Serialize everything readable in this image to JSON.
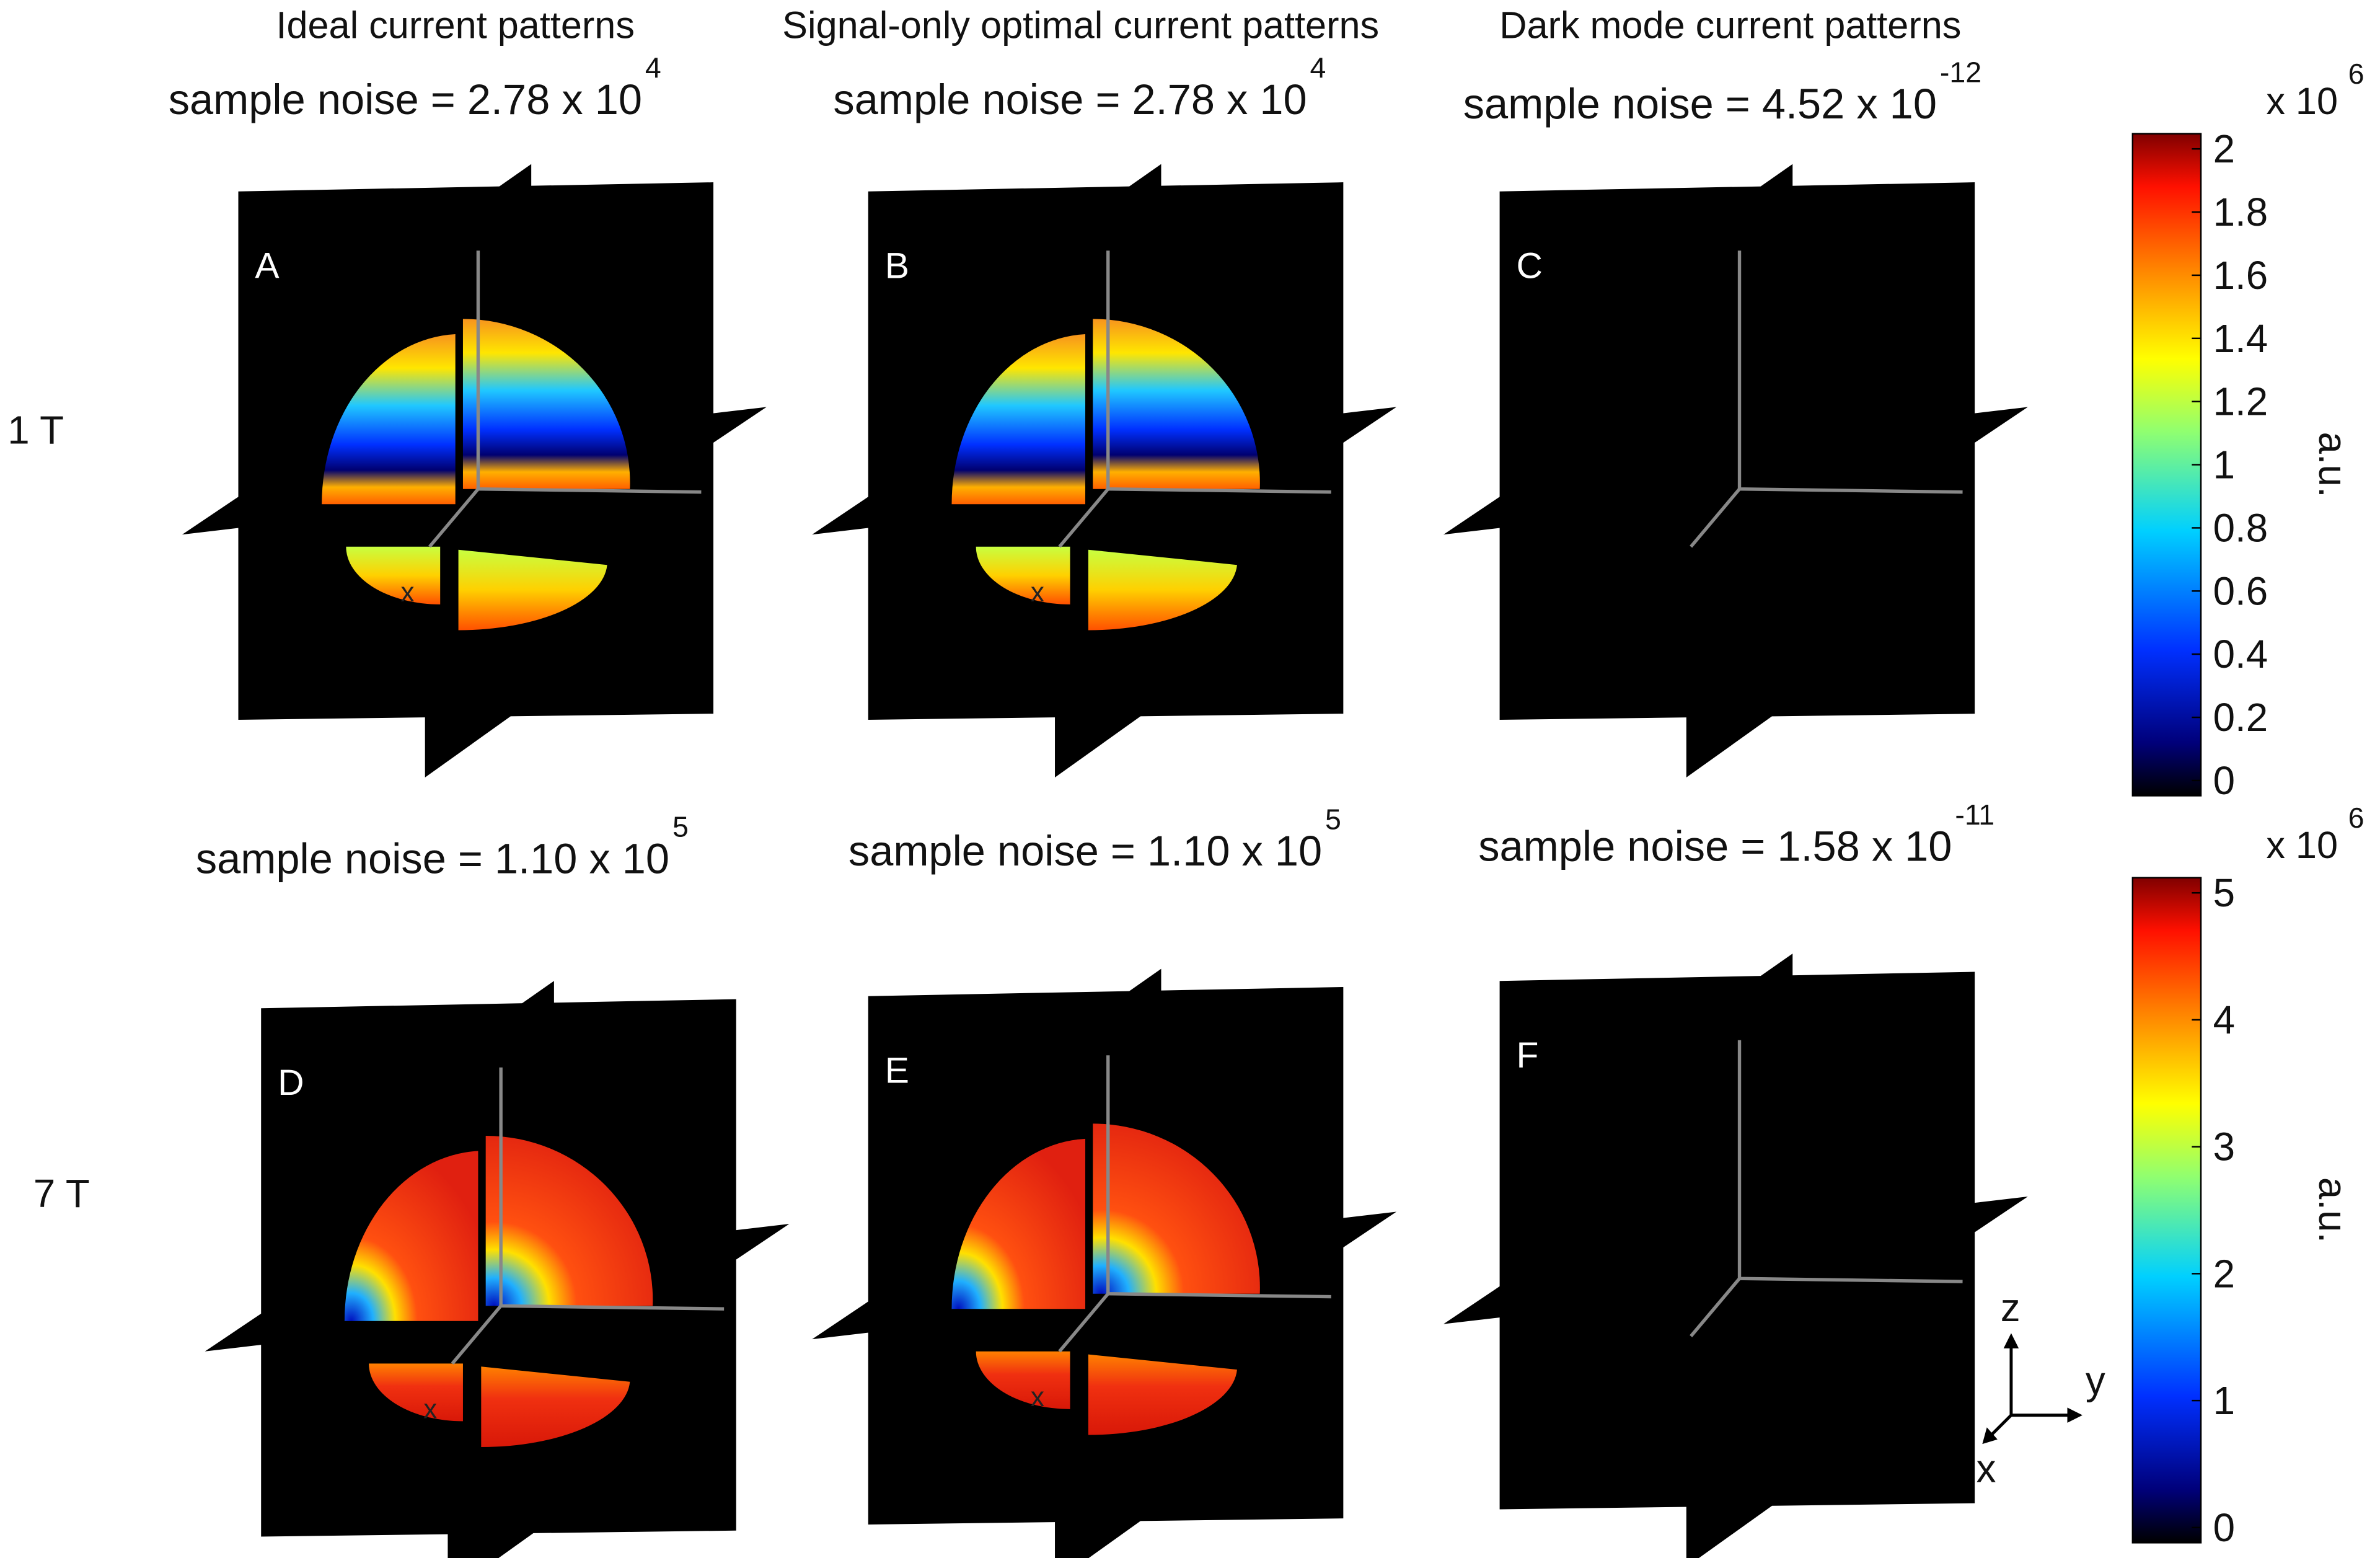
{
  "columns": [
    {
      "title": "Ideal current patterns"
    },
    {
      "title": "Signal-only optimal current patterns"
    },
    {
      "title": "Dark mode current patterns"
    }
  ],
  "rows": [
    {
      "label": "1 T",
      "panels": [
        {
          "letter": "A",
          "noise": "sample noise = 2.78 x 10",
          "exponent": "4",
          "marker": "x"
        },
        {
          "letter": "B",
          "noise": "sample noise = 2.78 x 10",
          "exponent": "4",
          "marker": "x"
        },
        {
          "letter": "C",
          "noise": "sample noise = 4.52 x 10",
          "exponent": "-12"
        }
      ],
      "colorbar": {
        "scale": "x 10",
        "exponent": "6",
        "unit": "a.u.",
        "ticks": [
          0,
          0.2,
          0.4,
          0.6,
          0.8,
          1,
          1.2,
          1.4,
          1.6,
          1.8,
          2
        ]
      }
    },
    {
      "label": "7 T",
      "panels": [
        {
          "letter": "D",
          "noise": "sample noise = 1.10 x 10",
          "exponent": "5",
          "marker": "x"
        },
        {
          "letter": "E",
          "noise": "sample noise = 1.10 x 10",
          "exponent": "5",
          "marker": "x"
        },
        {
          "letter": "F",
          "noise": "sample noise = 1.58 x 10",
          "exponent": "-11"
        }
      ],
      "colorbar": {
        "scale": "x 10",
        "exponent": "6",
        "unit": "a.u.",
        "ticks": [
          0,
          1,
          2,
          3,
          4,
          5
        ]
      }
    }
  ],
  "triad": {
    "z": "z",
    "y": "y",
    "x": "x"
  }
}
